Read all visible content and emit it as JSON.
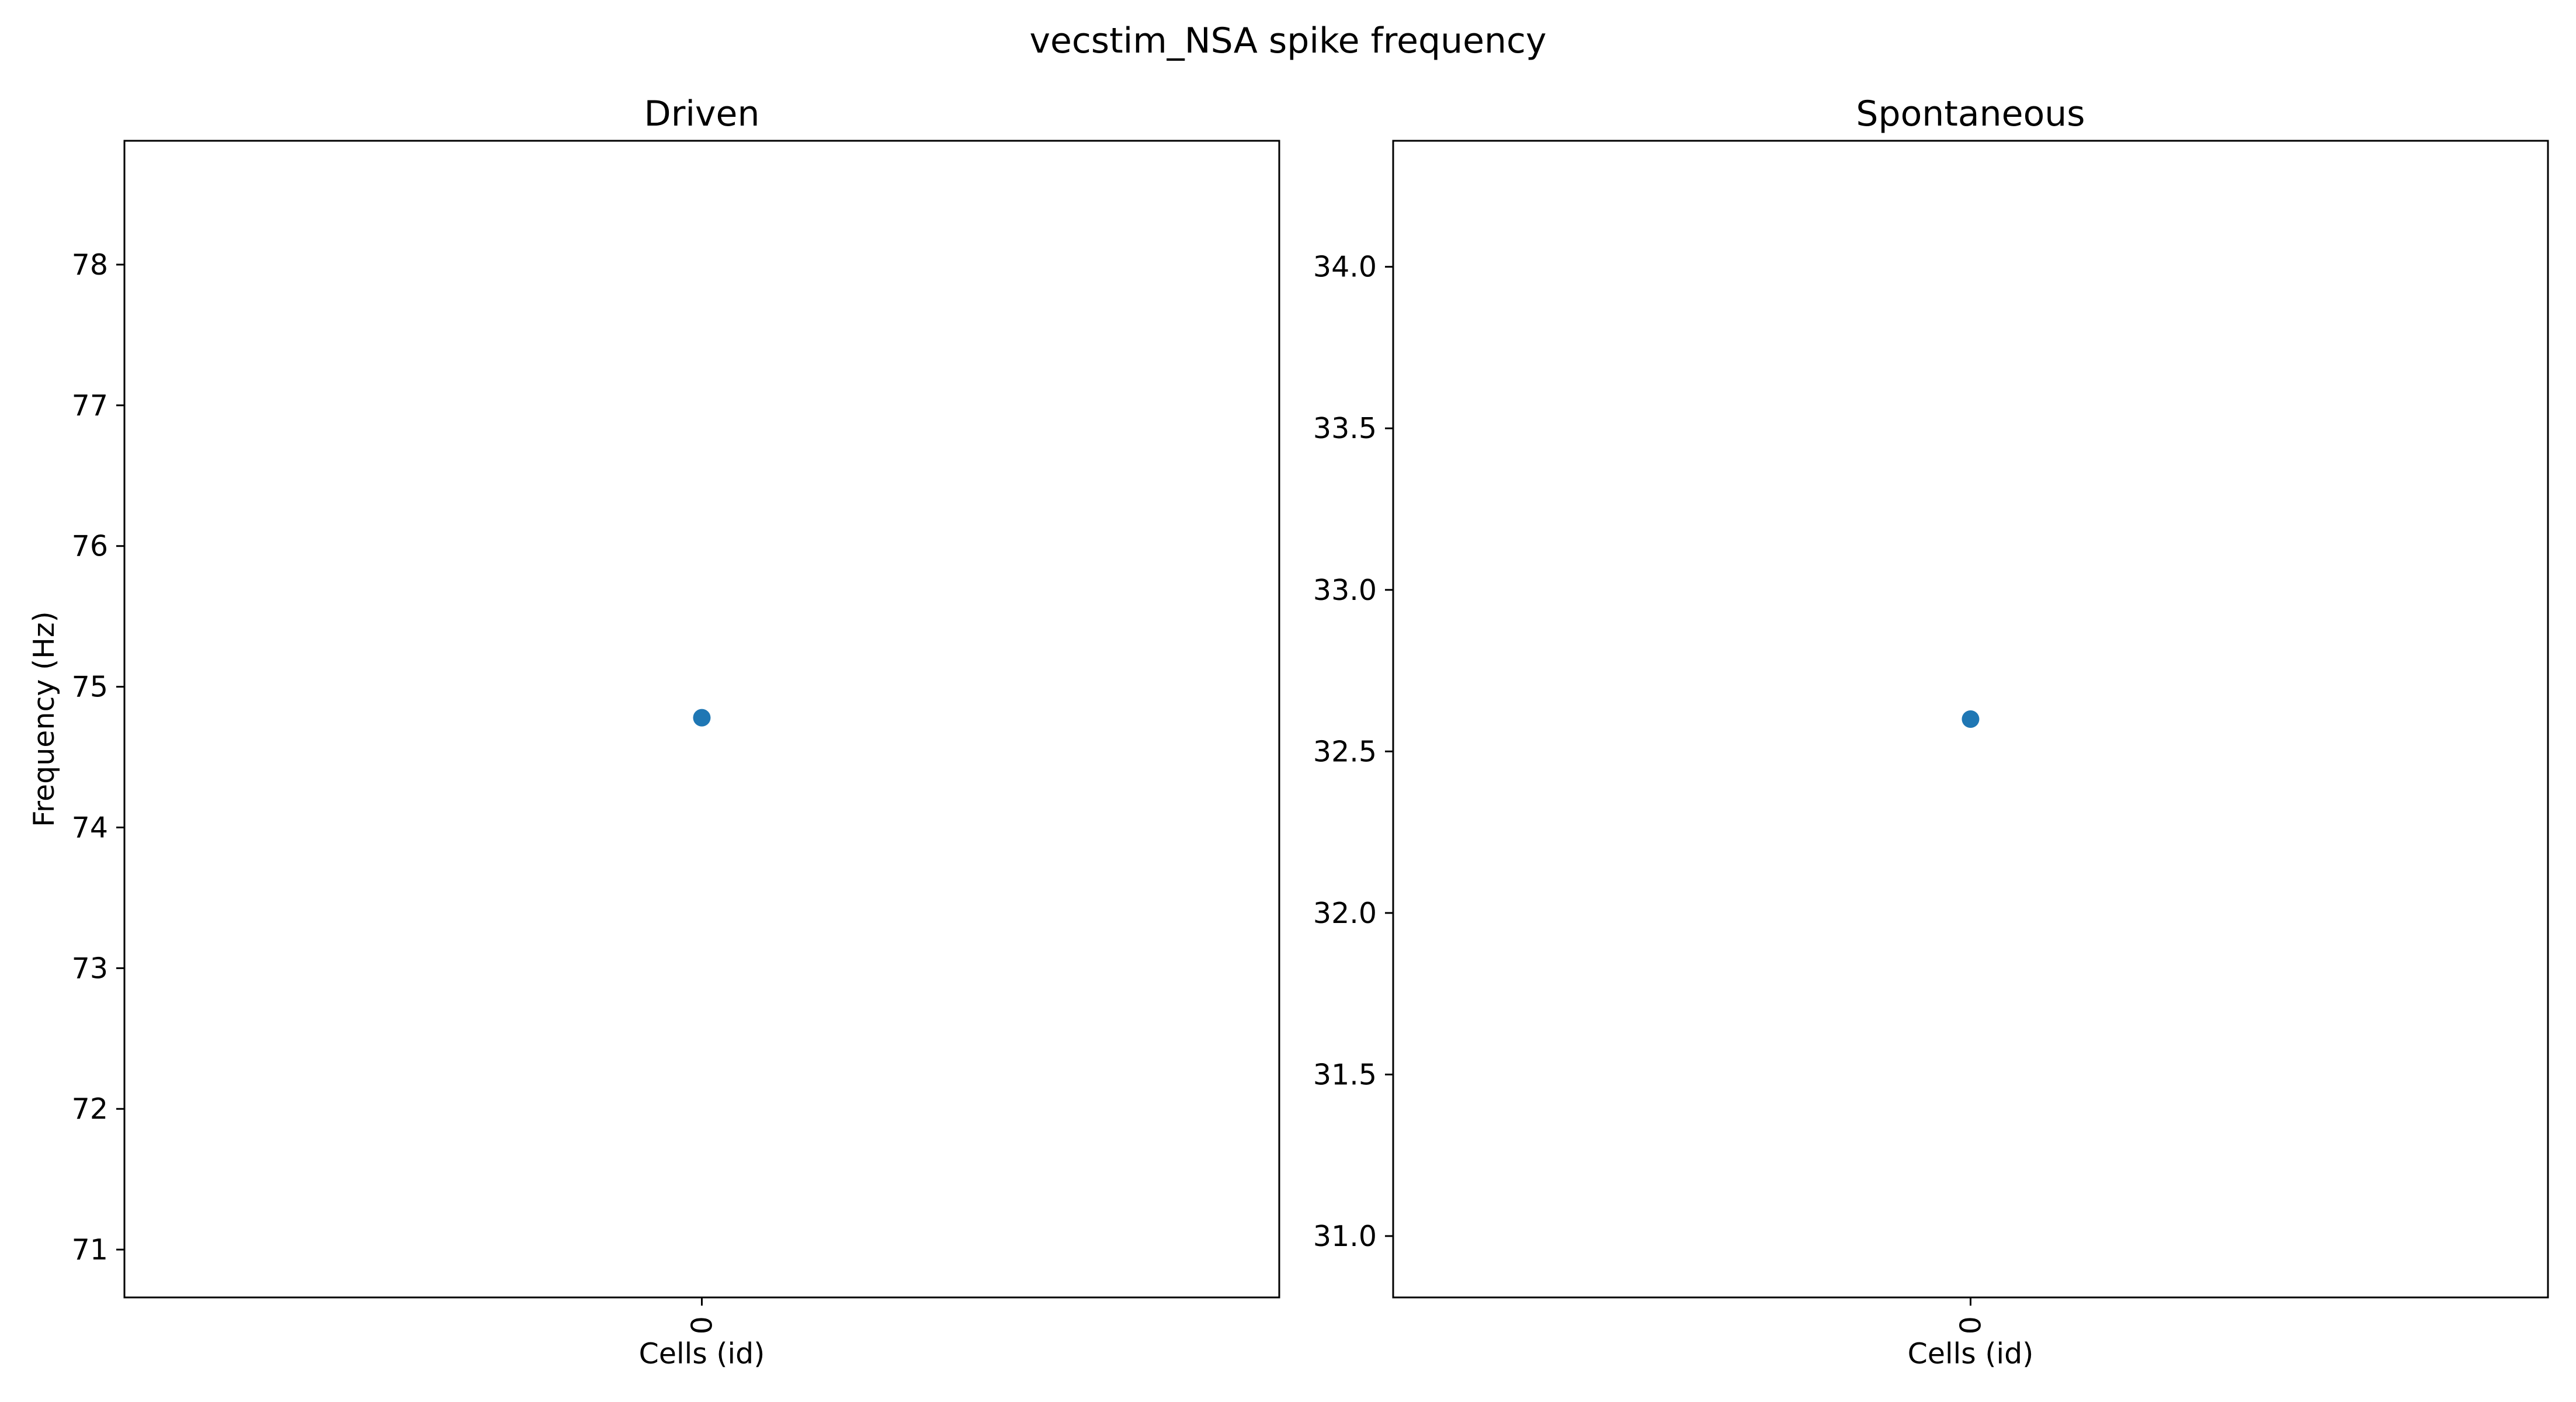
{
  "figure": {
    "title": "vecstim_NSA spike frequency",
    "marker_color": "#1f77b4"
  },
  "chart_data": [
    {
      "type": "scatter",
      "title": "Driven",
      "xlabel": "Cells (id)",
      "ylabel": "Frequency (Hz)",
      "x_ticks": [
        "0"
      ],
      "y_ticks": [
        71,
        72,
        73,
        74,
        75,
        76,
        77,
        78
      ],
      "ylim": [
        70.66,
        78.88
      ],
      "points": [
        {
          "x": "0",
          "y": 74.78
        }
      ],
      "grid": false,
      "legend": "none"
    },
    {
      "type": "scatter",
      "title": "Spontaneous",
      "xlabel": "Cells (id)",
      "ylabel": "",
      "x_ticks": [
        "0"
      ],
      "y_ticks": [
        "31.0",
        "31.5",
        "32.0",
        "32.5",
        "33.0",
        "33.5",
        "34.0"
      ],
      "ylim": [
        30.81,
        34.39
      ],
      "points": [
        {
          "x": "0",
          "y": 32.6
        }
      ],
      "grid": false,
      "legend": "none"
    }
  ]
}
